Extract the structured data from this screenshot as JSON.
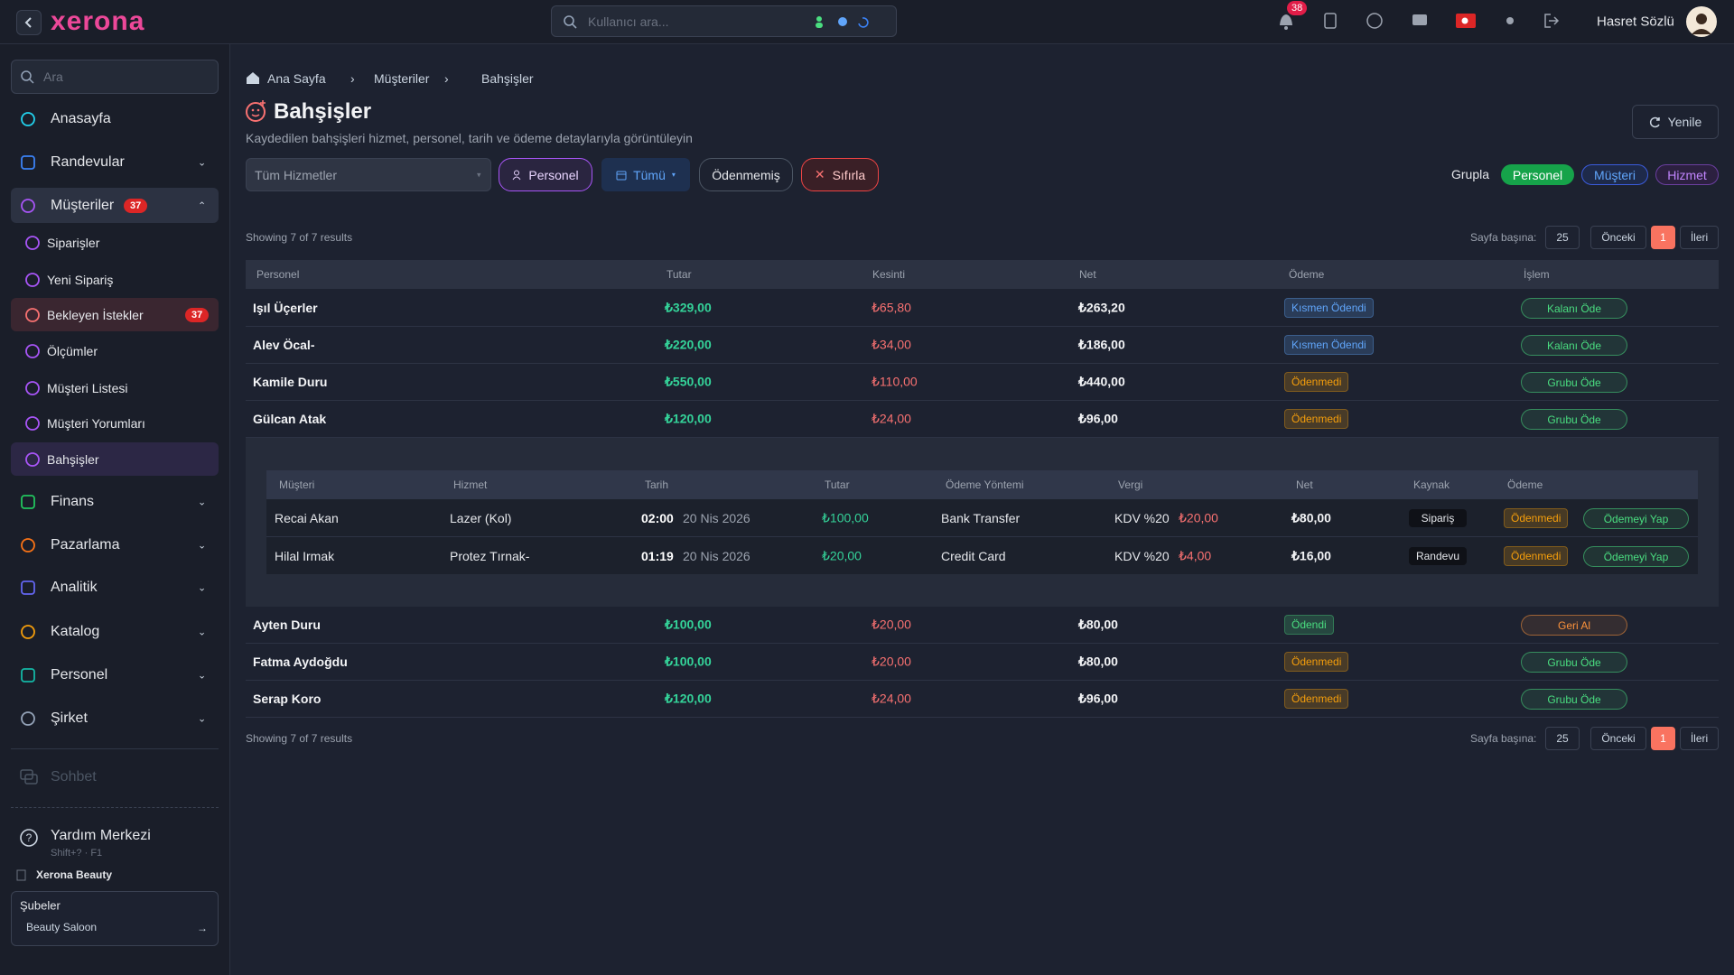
{
  "topbar": {
    "brand": "xerona",
    "search_placeholder": "Kullanıcı ara...",
    "notification_count": 38,
    "user_name": "Hasret Sözlü"
  },
  "sidebar": {
    "search_placeholder": "Ara",
    "menu": [
      {
        "label": "Anasayfa"
      },
      {
        "label": "Randevular"
      },
      {
        "label": "Müşteriler",
        "badge": 37,
        "children": [
          {
            "label": "Siparişler"
          },
          {
            "label": "Yeni Sipariş"
          },
          {
            "label": "Bekleyen İstekler",
            "badge": 37
          },
          {
            "label": "Ölçümler"
          },
          {
            "label": "Müşteri Listesi"
          },
          {
            "label": "Müşteri Yorumları"
          },
          {
            "label": "Bahşişler"
          }
        ]
      },
      {
        "label": "Finans"
      },
      {
        "label": "Pazarlama"
      },
      {
        "label": "Analitik"
      },
      {
        "label": "Katalog"
      },
      {
        "label": "Personel"
      },
      {
        "label": "Şirket"
      }
    ],
    "chat": "Sohbet",
    "help_title": "Yardım Merkezi",
    "help_shortcut": "Shift+? · F1",
    "company": "Xerona Beauty",
    "branches_label": "Şubeler",
    "branch": "Beauty Saloon"
  },
  "page": {
    "breadcrumb": [
      "Ana Sayfa",
      "Müşteriler",
      "Bahşişler"
    ],
    "title": "Bahşişler",
    "subtitle": "Kaydedilen bahşişleri hizmet, personel, tarih ve ödeme detaylarıyla görüntüleyin",
    "refresh": "Yenile",
    "filters": {
      "service": "Tüm Hizmetler",
      "staff": "Personel",
      "period": "Tümü",
      "unpaid": "Ödenmemiş",
      "reset": "Sıfırla"
    },
    "group_label": "Grupla",
    "group_options": [
      "Personel",
      "Müşteri",
      "Hizmet"
    ]
  },
  "table": {
    "summary": "Showing 7 of 7 results",
    "per_page_label": "Sayfa başına:",
    "per_page": 25,
    "prev": "Önceki",
    "page": 1,
    "next": "İleri",
    "columns": [
      "Personel",
      "Tutar",
      "Kesinti",
      "Net",
      "Ödeme",
      "İşlem"
    ],
    "rows": [
      {
        "personel": "Işıl Üçerler",
        "tutar": "₺329,00",
        "kesinti": "₺65,80",
        "net": "₺263,20",
        "status": "Kısmen Ödendi",
        "status_color": "#60a5fa",
        "action": "Kalanı Öde",
        "action_color": "#4ade80"
      },
      {
        "personel": "Alev Öcal-",
        "tutar": "₺220,00",
        "kesinti": "₺34,00",
        "net": "₺186,00",
        "status": "Kısmen Ödendi",
        "status_color": "#60a5fa",
        "action": "Kalanı Öde",
        "action_color": "#4ade80"
      },
      {
        "personel": "Kamile Duru",
        "tutar": "₺550,00",
        "kesinti": "₺110,00",
        "net": "₺440,00",
        "status": "Ödenmedi",
        "status_color": "#f59e0b",
        "action": "Grubu Öde",
        "action_color": "#4ade80"
      },
      {
        "personel": "Gülcan Atak",
        "tutar": "₺120,00",
        "kesinti": "₺24,00",
        "net": "₺96,00",
        "status": "Ödenmedi",
        "status_color": "#f59e0b",
        "action": "Grubu Öde",
        "action_color": "#4ade80",
        "details": {
          "columns": [
            "Müşteri",
            "Hizmet",
            "Tarih",
            "Tutar",
            "Ödeme Yöntemi",
            "Vergi",
            "Net",
            "Kaynak",
            "Ödeme"
          ],
          "rows": [
            {
              "musteri": "Recai Akan",
              "hizmet": "Lazer (Kol)",
              "time": "02:00",
              "date": "20 Nis 2026",
              "tutar": "₺100,00",
              "method": "Bank Transfer",
              "tax_label": "KDV %20",
              "tax": "₺20,00",
              "net": "₺80,00",
              "source": "Sipariş",
              "status": "Ödenmedi",
              "action": "Ödemeyi Yap"
            },
            {
              "musteri": "Hilal Irmak",
              "hizmet": "Protez Tırnak-",
              "time": "01:19",
              "date": "20 Nis 2026",
              "tutar": "₺20,00",
              "method": "Credit Card",
              "tax_label": "KDV %20",
              "tax": "₺4,00",
              "net": "₺16,00",
              "source": "Randevu",
              "status": "Ödenmedi",
              "action": "Ödemeyi Yap"
            }
          ]
        }
      },
      {
        "personel": "Ayten Duru",
        "tutar": "₺100,00",
        "kesinti": "₺20,00",
        "net": "₺80,00",
        "status": "Ödendi",
        "status_color": "#4ade80",
        "action": "Geri Al",
        "action_color": "#fb923c"
      },
      {
        "personel": "Fatma Aydoğdu",
        "tutar": "₺100,00",
        "kesinti": "₺20,00",
        "net": "₺80,00",
        "status": "Ödenmedi",
        "status_color": "#f59e0b",
        "action": "Grubu Öde",
        "action_color": "#4ade80"
      },
      {
        "personel": "Serap Koro",
        "tutar": "₺120,00",
        "kesinti": "₺24,00",
        "net": "₺96,00",
        "status": "Ödenmedi",
        "status_color": "#f59e0b",
        "action": "Grubu Öde",
        "action_color": "#4ade80"
      }
    ]
  }
}
